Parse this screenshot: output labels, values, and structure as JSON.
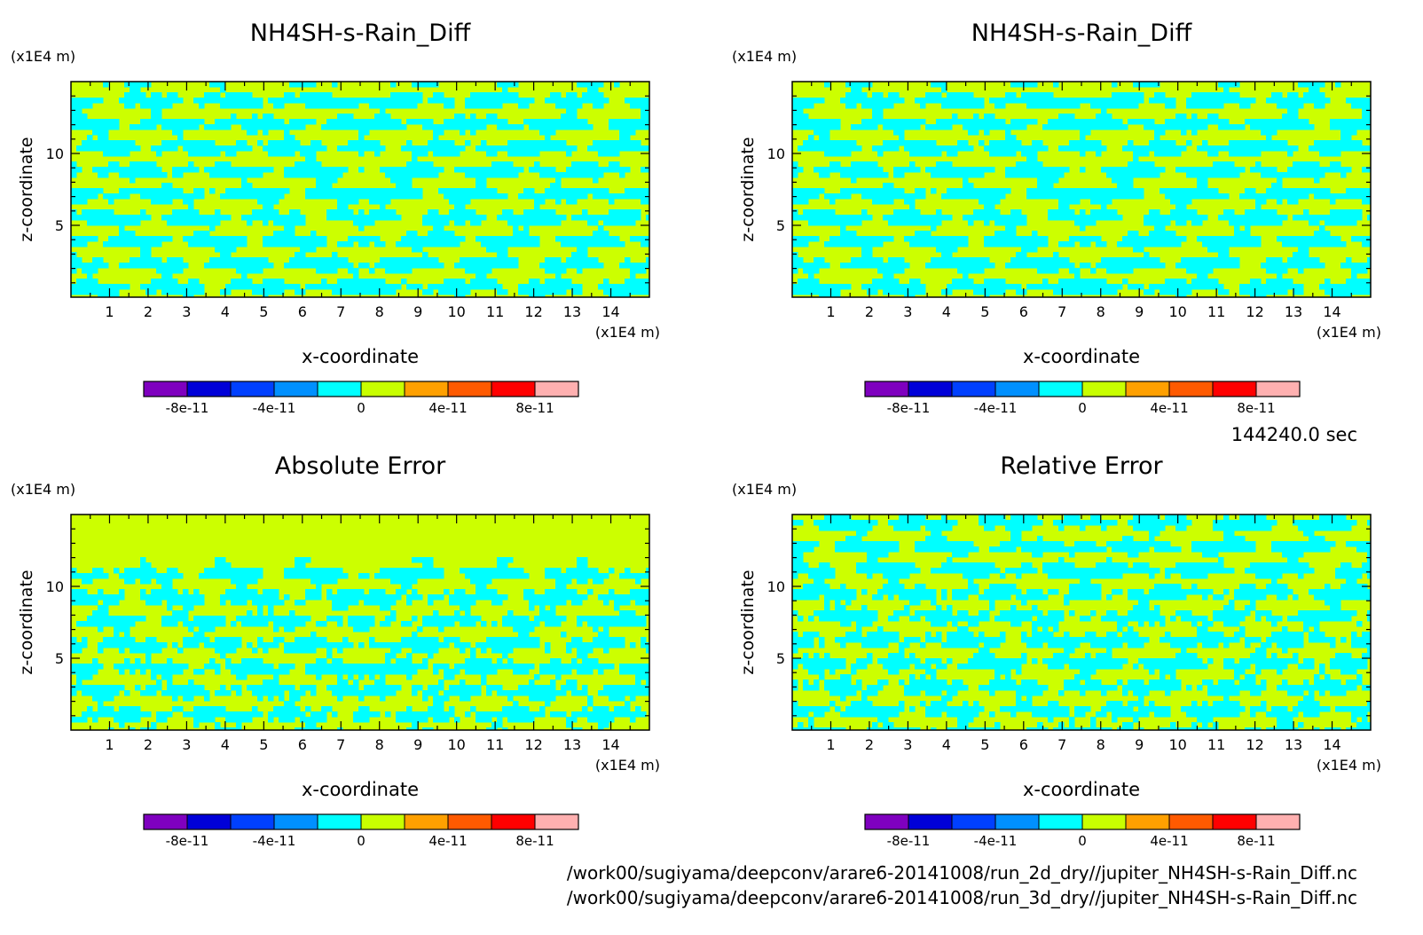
{
  "timestamp": "144240.0 sec",
  "file_paths": [
    "/work00/sugiyama/deepconv/arare6-20141008/run_2d_dry//jupiter_NH4SH-s-Rain_Diff.nc",
    "/work00/sugiyama/deepconv/arare6-20141008/run_3d_dry//jupiter_NH4SH-s-Rain_Diff.nc"
  ],
  "colors": {
    "contour_bands": [
      "#7f00bf",
      "#0000d8",
      "#0040ff",
      "#0090ff",
      "#00ffff",
      "#c8ff00",
      "#ffa000",
      "#ff5a00",
      "#ff0000",
      "#ffb0b0"
    ],
    "panel_fill_a": "#ccff00",
    "panel_fill_b": "#00ffff"
  },
  "chart_data": [
    {
      "type": "heatmap",
      "title": "NH4SH-s-Rain_Diff",
      "xlabel": "x-coordinate",
      "ylabel": "z-coordinate",
      "x_unit": "(x1E4 m)",
      "y_unit": "(x1E4 m)",
      "xlim": [
        0,
        15
      ],
      "ylim": [
        0,
        15
      ],
      "xticks": [
        1,
        2,
        3,
        4,
        5,
        6,
        7,
        8,
        9,
        10,
        11,
        12,
        13,
        14
      ],
      "yticks": [
        5,
        10
      ],
      "colorbar_levels": [
        -1e-10,
        -8e-11,
        -6e-11,
        -4e-11,
        -2e-11,
        0,
        2e-11,
        4e-11,
        6e-11,
        8e-11,
        1e-10
      ],
      "colorbar_labels": [
        "-8e-11",
        "-4e-11",
        "0",
        "4e-11",
        "8e-11"
      ],
      "colorbar_label_values": [
        -8e-11,
        -4e-11,
        0,
        4e-11,
        8e-11
      ],
      "values_range": [
        -2e-11,
        2e-11
      ]
    },
    {
      "type": "heatmap",
      "title": "NH4SH-s-Rain_Diff",
      "xlabel": "x-coordinate",
      "ylabel": "z-coordinate",
      "x_unit": "(x1E4 m)",
      "y_unit": "(x1E4 m)",
      "xlim": [
        0,
        15
      ],
      "ylim": [
        0,
        15
      ],
      "xticks": [
        1,
        2,
        3,
        4,
        5,
        6,
        7,
        8,
        9,
        10,
        11,
        12,
        13,
        14
      ],
      "yticks": [
        5,
        10
      ],
      "colorbar_levels": [
        -1e-10,
        -8e-11,
        -6e-11,
        -4e-11,
        -2e-11,
        0,
        2e-11,
        4e-11,
        6e-11,
        8e-11,
        1e-10
      ],
      "colorbar_labels": [
        "-8e-11",
        "-4e-11",
        "0",
        "4e-11",
        "8e-11"
      ],
      "colorbar_label_values": [
        -8e-11,
        -4e-11,
        0,
        4e-11,
        8e-11
      ],
      "values_range": [
        -2e-11,
        2e-11
      ]
    },
    {
      "type": "heatmap",
      "title": "Absolute Error",
      "xlabel": "x-coordinate",
      "ylabel": "z-coordinate",
      "x_unit": "(x1E4 m)",
      "y_unit": "(x1E4 m)",
      "xlim": [
        0,
        15
      ],
      "ylim": [
        0,
        15
      ],
      "xticks": [
        1,
        2,
        3,
        4,
        5,
        6,
        7,
        8,
        9,
        10,
        11,
        12,
        13,
        14
      ],
      "yticks": [
        5,
        10
      ],
      "colorbar_levels": [
        -1e-10,
        -8e-11,
        -6e-11,
        -4e-11,
        -2e-11,
        0,
        2e-11,
        4e-11,
        6e-11,
        8e-11,
        1e-10
      ],
      "colorbar_labels": [
        "-8e-11",
        "-4e-11",
        "0",
        "4e-11",
        "8e-11"
      ],
      "colorbar_label_values": [
        -8e-11,
        -4e-11,
        0,
        4e-11,
        8e-11
      ],
      "values_range": [
        -2e-11,
        2e-11
      ]
    },
    {
      "type": "heatmap",
      "title": "Relative Error",
      "xlabel": "x-coordinate",
      "ylabel": "z-coordinate",
      "x_unit": "(x1E4 m)",
      "y_unit": "(x1E4 m)",
      "xlim": [
        0,
        15
      ],
      "ylim": [
        0,
        15
      ],
      "xticks": [
        1,
        2,
        3,
        4,
        5,
        6,
        7,
        8,
        9,
        10,
        11,
        12,
        13,
        14
      ],
      "yticks": [
        5,
        10
      ],
      "colorbar_levels": [
        -1e-10,
        -8e-11,
        -6e-11,
        -4e-11,
        -2e-11,
        0,
        2e-11,
        4e-11,
        6e-11,
        8e-11,
        1e-10
      ],
      "colorbar_labels": [
        "-8e-11",
        "-4e-11",
        "0",
        "4e-11",
        "8e-11"
      ],
      "colorbar_label_values": [
        -8e-11,
        -4e-11,
        0,
        4e-11,
        8e-11
      ],
      "values_range": [
        -2e-11,
        2e-11
      ]
    }
  ]
}
